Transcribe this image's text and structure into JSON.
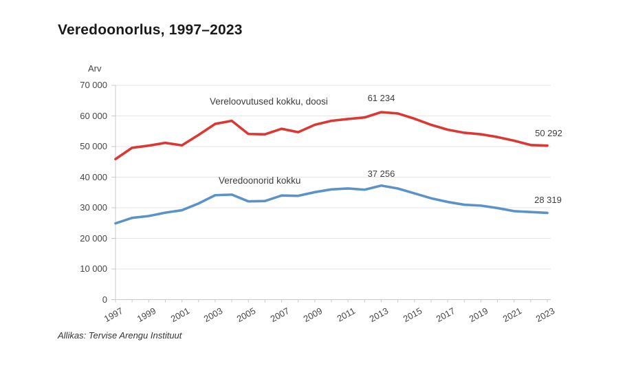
{
  "title": "Veredoonorlus, 1997–2023",
  "y_axis_title": "Arv",
  "source": "Allikas: Tervise Arengu Instituut",
  "series_labels": {
    "donations": "Vereloovutused kokku, doosi",
    "donors": "Veredoonorid kokku"
  },
  "annotations": [
    {
      "id": "peak-donations",
      "text": "61 234"
    },
    {
      "id": "peak-donors",
      "text": "37 256"
    },
    {
      "id": "end-donations",
      "text": "50 292"
    },
    {
      "id": "end-donors",
      "text": "28 319"
    }
  ],
  "colors": {
    "donations_line": "#dc3732",
    "donors_line": "#5b93c8",
    "grid": "#e6e6e6",
    "axis": "#c8c8c8",
    "tick_text": "#454545",
    "title_text": "#1a1a1a"
  },
  "chart_data": {
    "type": "line",
    "title": "Veredoonorlus, 1997–2023",
    "ylabel": "Arv",
    "ylim": [
      0,
      70000
    ],
    "y_tick_step": 10000,
    "grid": "horizontal",
    "legend_position": "inline-labels",
    "x": [
      1997,
      1998,
      1999,
      2000,
      2001,
      2002,
      2003,
      2004,
      2005,
      2006,
      2007,
      2008,
      2009,
      2010,
      2011,
      2012,
      2013,
      2014,
      2015,
      2016,
      2017,
      2018,
      2019,
      2020,
      2021,
      2022,
      2023
    ],
    "x_tick_labels": [
      "1997",
      "1999",
      "2001",
      "2003",
      "2005",
      "2007",
      "2009",
      "2011",
      "2013",
      "2015",
      "2017",
      "2019",
      "2021",
      "2023"
    ],
    "y_tick_labels": [
      "0",
      "10 000",
      "20 000",
      "30 000",
      "40 000",
      "50 000",
      "60 000",
      "70 000"
    ],
    "series": [
      {
        "name": "Vereloovutused kokku, doosi",
        "color": "#dc3732",
        "values": [
          45900,
          49600,
          50300,
          51200,
          50400,
          53800,
          57400,
          58400,
          54100,
          54000,
          55800,
          54700,
          57100,
          58400,
          59000,
          59500,
          61234,
          60800,
          59100,
          57100,
          55500,
          54500,
          54000,
          53100,
          51900,
          50500,
          50292
        ]
      },
      {
        "name": "Veredoonorid kokku",
        "color": "#5b93c8",
        "values": [
          24900,
          26700,
          27300,
          28400,
          29200,
          31400,
          34100,
          34300,
          32100,
          32200,
          34000,
          33900,
          35100,
          36000,
          36300,
          35900,
          37256,
          36300,
          34700,
          33100,
          31900,
          31000,
          30700,
          29900,
          28900,
          28600,
          28319
        ]
      }
    ],
    "labeled_points": [
      {
        "series": "Vereloovutused kokku, doosi",
        "x": 2013,
        "y": 61234
      },
      {
        "series": "Veredoonorid kokku",
        "x": 2013,
        "y": 37256
      },
      {
        "series": "Vereloovutused kokku, doosi",
        "x": 2023,
        "y": 50292
      },
      {
        "series": "Veredoonorid kokku",
        "x": 2023,
        "y": 28319
      }
    ]
  }
}
